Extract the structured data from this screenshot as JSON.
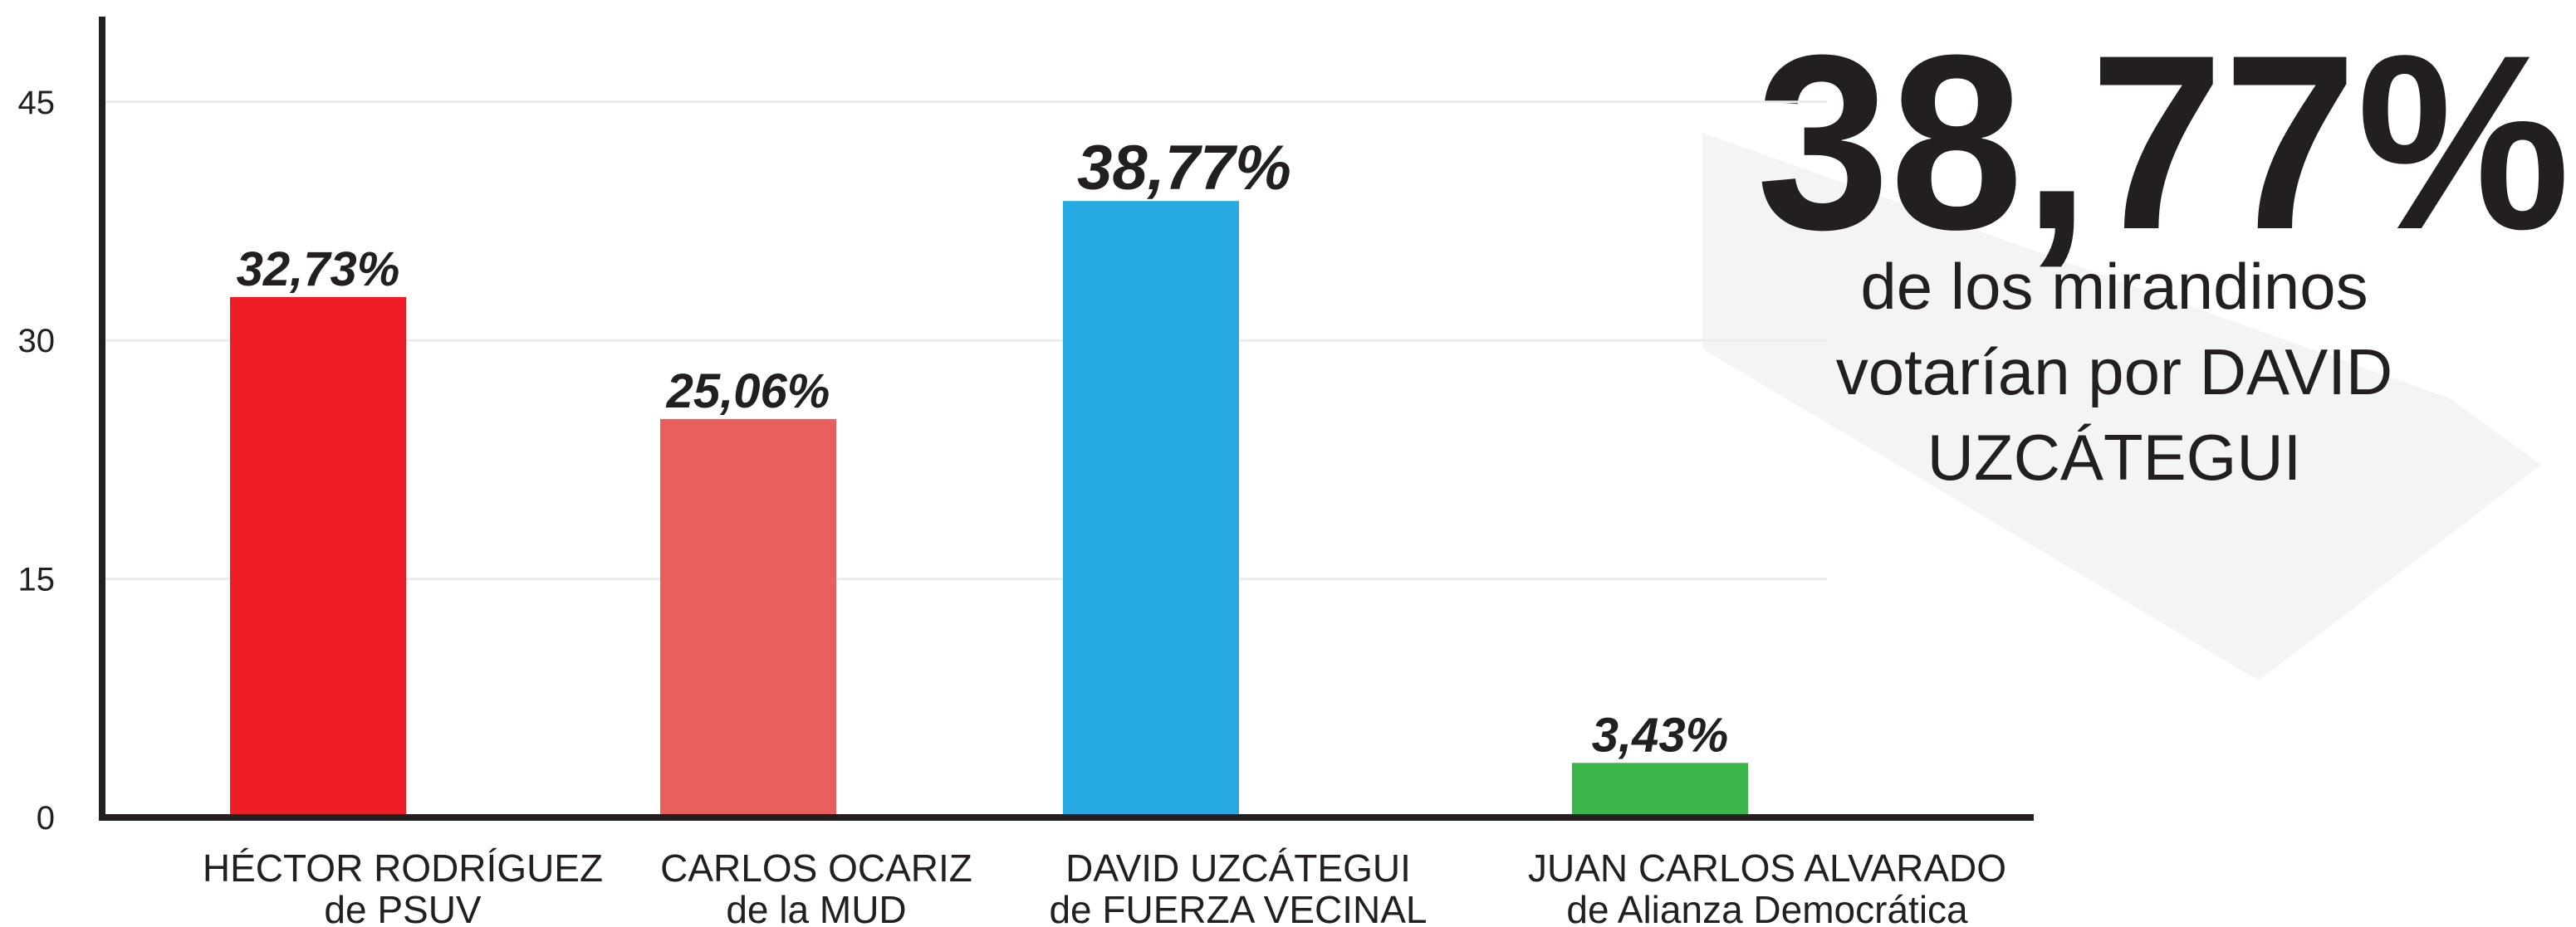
{
  "chart_data": {
    "type": "bar",
    "categories": [
      [
        "HÉCTOR RODRÍGUEZ",
        "de PSUV"
      ],
      [
        "CARLOS OCARIZ",
        "de la MUD"
      ],
      [
        "DAVID UZCÁTEGUI",
        "de FUERZA VECINAL"
      ],
      [
        "JUAN CARLOS ALVARADO",
        "de Alianza Democrática"
      ]
    ],
    "values": [
      32.73,
      25.06,
      38.77,
      3.43
    ],
    "value_labels": [
      "32,73%",
      "25,06%",
      "38,77%",
      "3,43%"
    ],
    "colors": [
      "#ee1c24",
      "#e8605e",
      "#27a9e1",
      "#39b54a"
    ],
    "ylim": [
      0,
      50
    ],
    "yticks": [
      0,
      15,
      30,
      45
    ],
    "grid": true,
    "annotation": {
      "headline": "38,77%",
      "lines": [
        "de los mirandinos",
        "votarían por DAVID",
        "UZCÁTEGUI"
      ]
    }
  }
}
